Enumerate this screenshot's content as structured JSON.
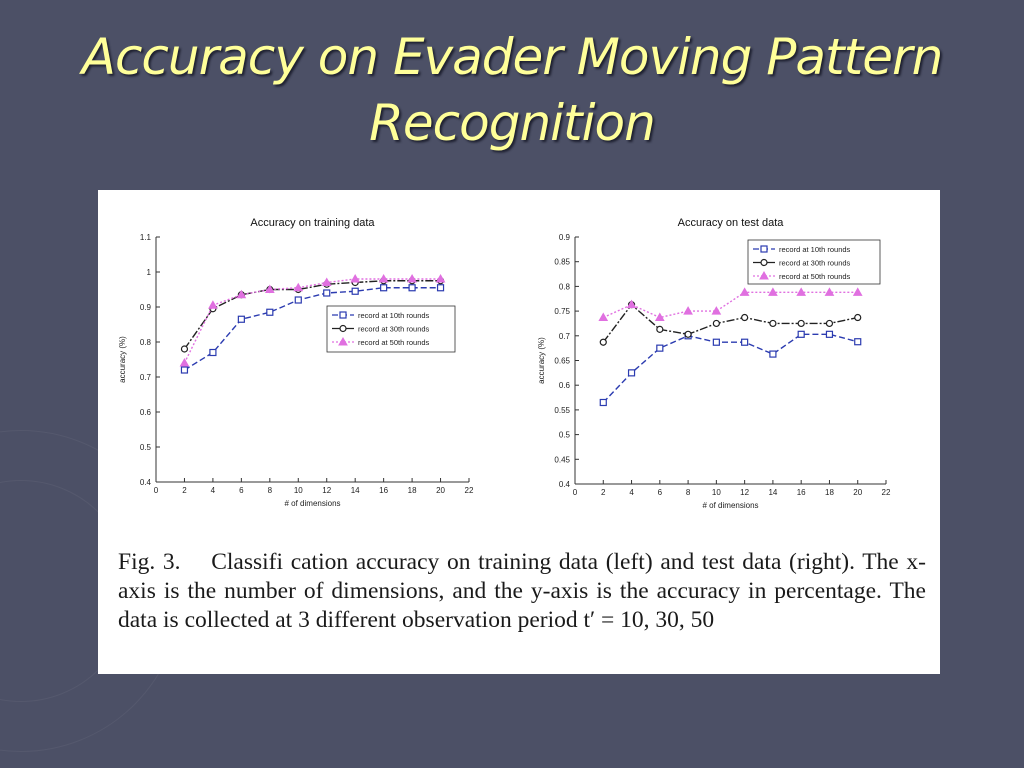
{
  "slide": {
    "title_line1": "Accuracy on Evader Moving Pattern",
    "title_line2": "Recognition",
    "title_color": "#ffff99",
    "background_color": "#4c5066"
  },
  "figure": {
    "caption_label": "Fig. 3.",
    "caption_text": "Classifi cation accuracy on training data (left) and test data (right). The x-axis is the number of dimensions, and the y-axis is the accuracy in percentage. The data is collected at 3 different observation period t′ = 10, 30, 50"
  },
  "chart_data": [
    {
      "type": "line",
      "title": "Accuracy on training data",
      "xlabel": "# of dimensions",
      "ylabel": "accuracy (%)",
      "xlim": [
        0,
        22
      ],
      "ylim": [
        0.4,
        1.1
      ],
      "xticks": [
        0,
        2,
        4,
        6,
        8,
        10,
        12,
        14,
        16,
        18,
        20,
        22
      ],
      "xtick_labels": [
        "0",
        "2",
        "4",
        "6",
        "8",
        "10",
        "12",
        "14",
        "16",
        "18",
        "20",
        "22"
      ],
      "yticks": [
        0.4,
        0.5,
        0.6,
        0.7,
        0.8,
        0.9,
        1.0,
        1.1
      ],
      "ytick_labels": [
        "0.4",
        "0.5",
        "0.6",
        "0.7",
        "0.8",
        "0.9",
        "1",
        "1.1"
      ],
      "legend_position": "center-right",
      "grid": false,
      "x": [
        2,
        4,
        6,
        8,
        10,
        12,
        14,
        16,
        18,
        20
      ],
      "series": [
        {
          "name": "record at 10th rounds",
          "color": "#2b3bb0",
          "dash": "6,3",
          "marker": "square",
          "values": [
            0.72,
            0.77,
            0.865,
            0.885,
            0.92,
            0.94,
            0.945,
            0.955,
            0.955,
            0.955
          ]
        },
        {
          "name": "record at 30th rounds",
          "color": "#222222",
          "dash": "8,2,2,2",
          "marker": "circle",
          "values": [
            0.78,
            0.895,
            0.935,
            0.95,
            0.95,
            0.965,
            0.97,
            0.975,
            0.975,
            0.975
          ]
        },
        {
          "name": "record at 50th rounds",
          "color": "#e070e0",
          "dash": "2,2",
          "marker": "triangle",
          "values": [
            0.74,
            0.905,
            0.935,
            0.95,
            0.955,
            0.97,
            0.98,
            0.98,
            0.98,
            0.98
          ]
        }
      ]
    },
    {
      "type": "line",
      "title": "Accuracy on test data",
      "xlabel": "# of dimensions",
      "ylabel": "accuracy (%)",
      "xlim": [
        0,
        22
      ],
      "ylim": [
        0.4,
        0.9
      ],
      "xticks": [
        0,
        2,
        4,
        6,
        8,
        10,
        12,
        14,
        16,
        18,
        20,
        22
      ],
      "xtick_labels": [
        "0",
        "2",
        "4",
        "6",
        "8",
        "10",
        "12",
        "14",
        "16",
        "18",
        "20",
        "22"
      ],
      "yticks": [
        0.4,
        0.45,
        0.5,
        0.55,
        0.6,
        0.65,
        0.7,
        0.75,
        0.8,
        0.85,
        0.9
      ],
      "ytick_labels": [
        "0.4",
        "0.45",
        "0.5",
        "0.55",
        "0.6",
        "0.65",
        "0.7",
        "0.75",
        "0.8",
        "0.85",
        "0.9"
      ],
      "legend_position": "top-right",
      "grid": false,
      "x": [
        2,
        4,
        6,
        8,
        10,
        12,
        14,
        16,
        18,
        20
      ],
      "series": [
        {
          "name": "record at 10th rounds",
          "color": "#2b3bb0",
          "dash": "6,3",
          "marker": "square",
          "values": [
            0.565,
            0.625,
            0.675,
            0.7,
            0.687,
            0.687,
            0.663,
            0.703,
            0.703,
            0.688
          ]
        },
        {
          "name": "record at 30th rounds",
          "color": "#222222",
          "dash": "8,2,2,2",
          "marker": "circle",
          "values": [
            0.687,
            0.763,
            0.713,
            0.703,
            0.725,
            0.737,
            0.725,
            0.725,
            0.725,
            0.737
          ]
        },
        {
          "name": "record at 50th rounds",
          "color": "#e070e0",
          "dash": "2,2",
          "marker": "triangle",
          "values": [
            0.737,
            0.763,
            0.737,
            0.75,
            0.75,
            0.788,
            0.788,
            0.788,
            0.788,
            0.788
          ]
        }
      ]
    }
  ]
}
